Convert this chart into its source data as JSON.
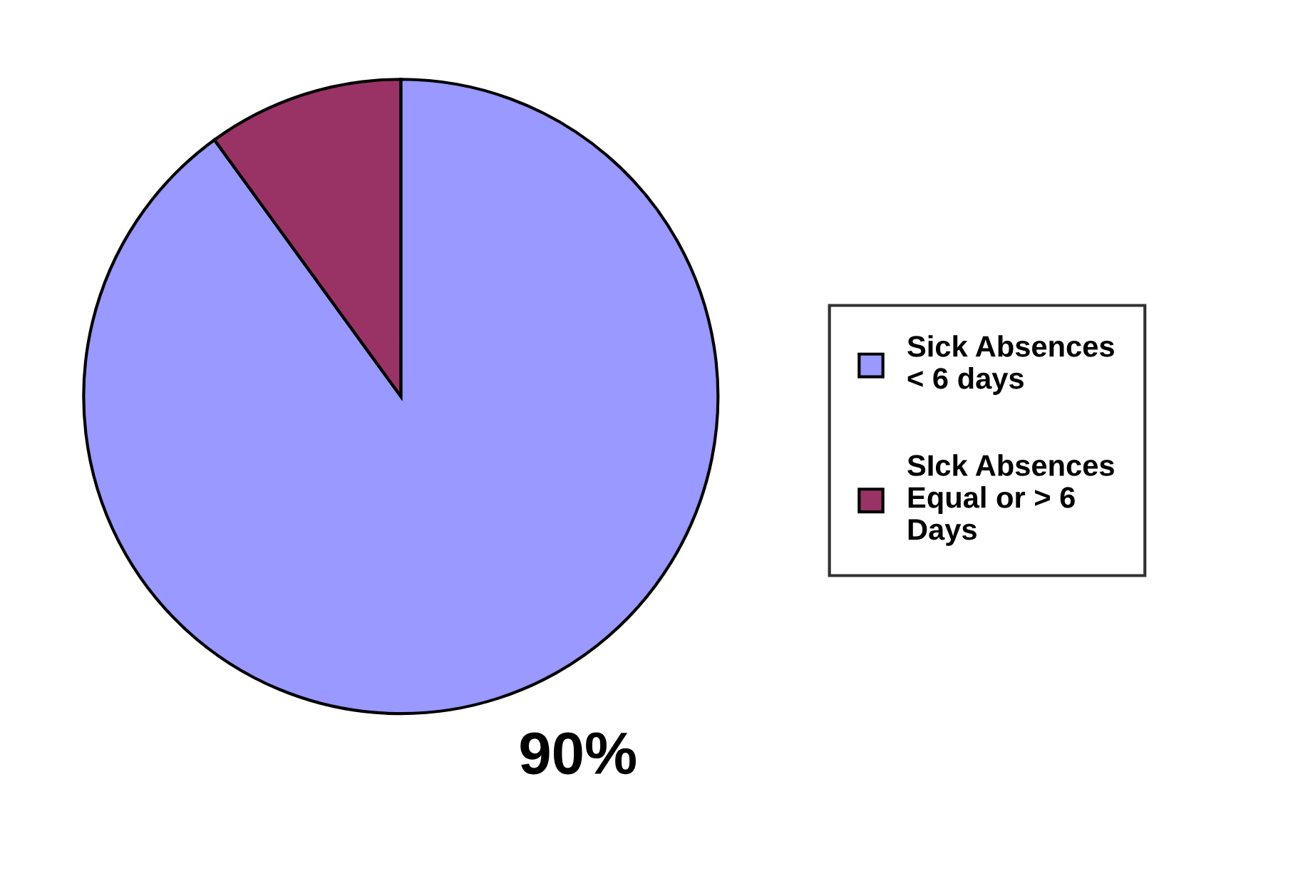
{
  "chart_data": {
    "type": "pie",
    "categories": [
      "Sick Absences\n< 6 days",
      "SIck Absences\nEqual or > 6\nDays"
    ],
    "values": [
      90,
      10
    ],
    "colors": [
      "#9999ff",
      "#993366"
    ],
    "value_labels": [
      "90%",
      null
    ],
    "legend": "right"
  }
}
